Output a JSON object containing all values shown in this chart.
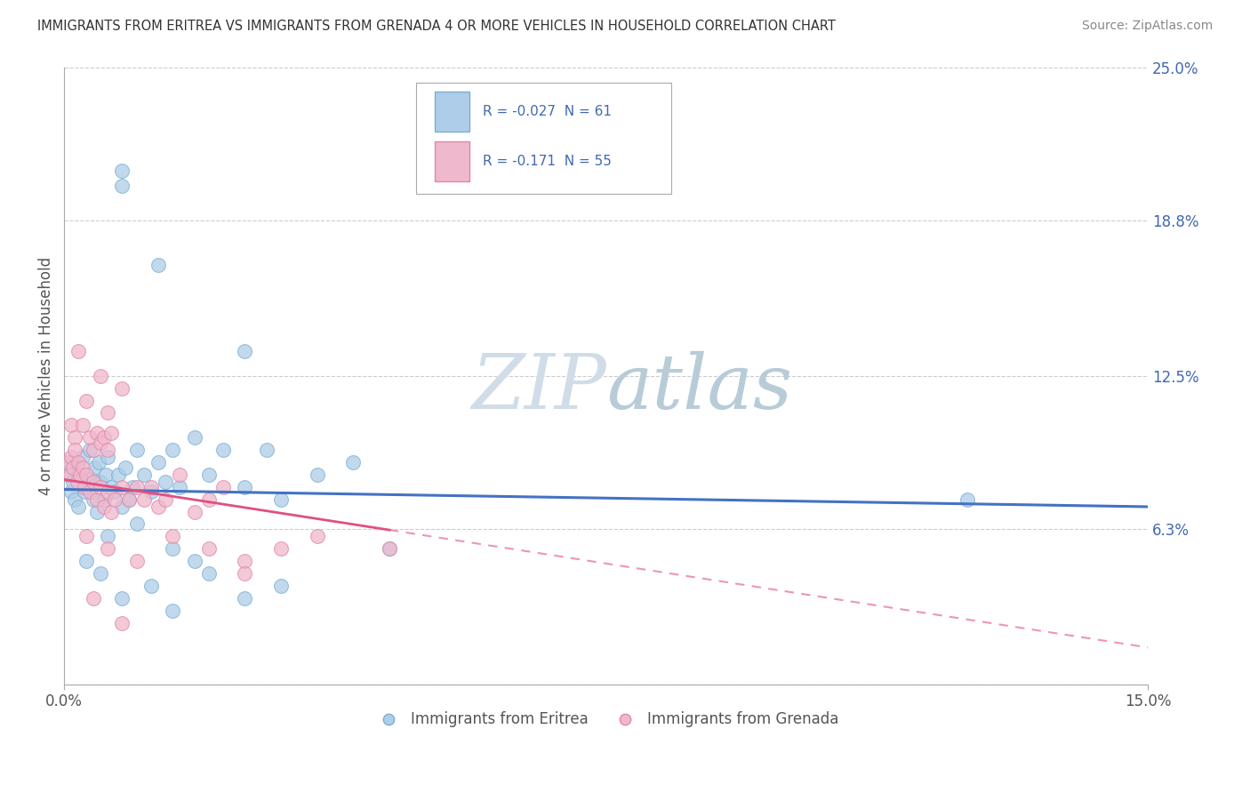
{
  "title": "IMMIGRANTS FROM ERITREA VS IMMIGRANTS FROM GRENADA 4 OR MORE VEHICLES IN HOUSEHOLD CORRELATION CHART",
  "source": "Source: ZipAtlas.com",
  "ylabel": "4 or more Vehicles in Household",
  "right_yticks": [
    0.0,
    6.3,
    12.5,
    18.8,
    25.0
  ],
  "right_ytick_labels": [
    "",
    "6.3%",
    "12.5%",
    "18.8%",
    "25.0%"
  ],
  "xmin": 0.0,
  "xmax": 15.0,
  "ymin": 0.0,
  "ymax": 25.0,
  "legend_eritrea_R": "-0.027",
  "legend_eritrea_N": "61",
  "legend_grenada_R": "-0.171",
  "legend_grenada_N": "55",
  "color_eritrea": "#aecde8",
  "color_grenada": "#f0b8cc",
  "color_eritrea_edge": "#7bafd4",
  "color_grenada_edge": "#e088a8",
  "color_eritrea_line": "#4472c4",
  "color_grenada_line": "#e05080",
  "color_text_blue": "#4169b0",
  "background_color": "#ffffff",
  "grid_color": "#cccccc",
  "eritrea_line_start_y": 7.9,
  "eritrea_line_end_y": 7.2,
  "grenada_line_start_y": 8.3,
  "grenada_line_end_y": 1.5,
  "grenada_solid_end_x": 4.5,
  "figsize": [
    14.06,
    8.92
  ],
  "dpi": 100
}
